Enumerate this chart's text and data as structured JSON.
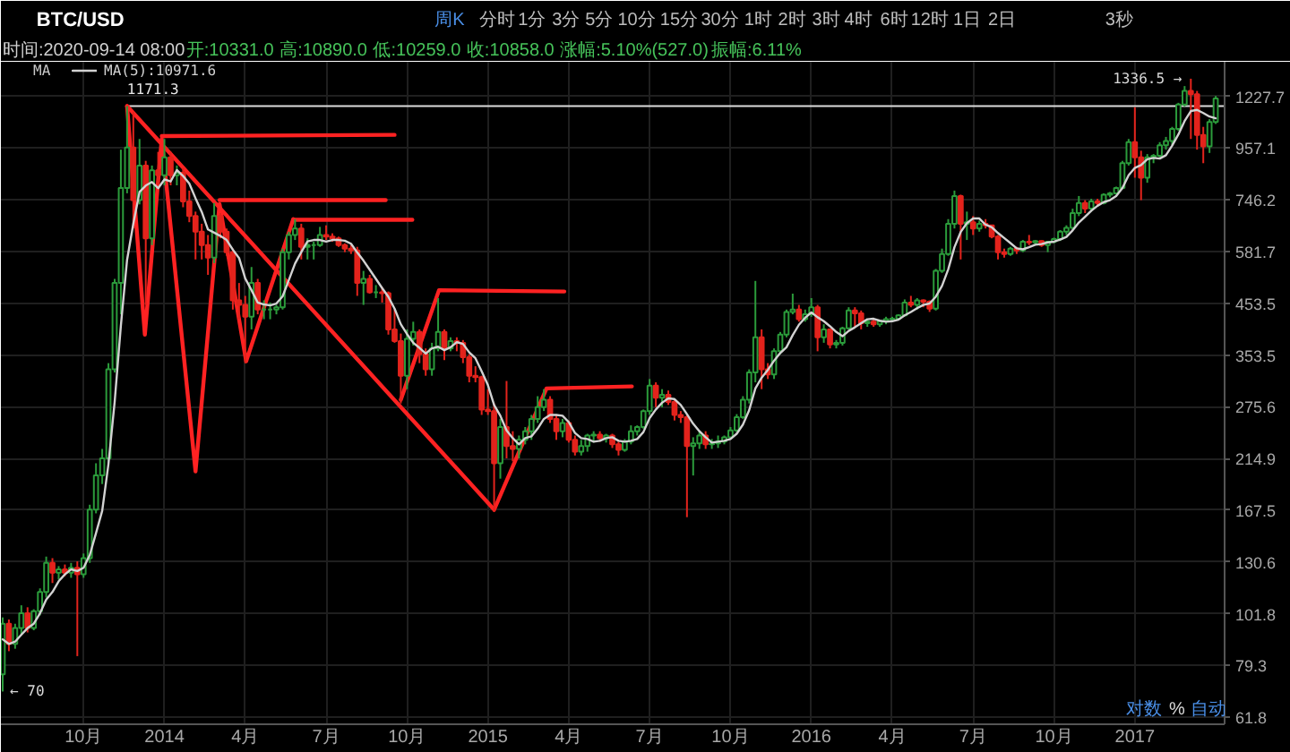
{
  "chart_data": {
    "type": "candlestick",
    "title": "BTC/USD",
    "x": [
      "2013-07-08",
      "2013-07-15",
      "2013-07-22",
      "2013-07-29",
      "2013-08-05",
      "2013-08-12",
      "2013-08-19",
      "2013-08-26",
      "2013-09-02",
      "2013-09-09",
      "2013-09-16",
      "2013-09-23",
      "2013-09-30",
      "2013-10-07",
      "2013-10-14",
      "2013-10-21",
      "2013-10-28",
      "2013-11-04",
      "2013-11-11",
      "2013-11-18",
      "2013-11-25",
      "2013-12-02",
      "2013-12-09",
      "2013-12-16",
      "2013-12-23",
      "2013-12-30",
      "2014-01-06",
      "2014-01-13",
      "2014-01-20",
      "2014-01-27",
      "2014-02-03",
      "2014-02-10",
      "2014-02-17",
      "2014-02-24",
      "2014-03-03",
      "2014-03-10",
      "2014-03-17",
      "2014-03-24",
      "2014-03-31",
      "2014-04-07",
      "2014-04-14",
      "2014-04-21",
      "2014-04-28",
      "2014-05-05",
      "2014-05-12",
      "2014-05-19",
      "2014-05-26",
      "2014-06-02",
      "2014-06-09",
      "2014-06-16",
      "2014-06-23",
      "2014-06-30",
      "2014-07-07",
      "2014-07-14",
      "2014-07-21",
      "2014-07-28",
      "2014-08-04",
      "2014-08-11",
      "2014-08-18",
      "2014-08-25",
      "2014-09-01",
      "2014-09-08",
      "2014-09-15",
      "2014-09-22",
      "2014-09-29",
      "2014-10-06",
      "2014-10-13",
      "2014-10-20",
      "2014-10-27",
      "2014-11-03",
      "2014-11-10",
      "2014-11-17",
      "2014-11-24",
      "2014-12-01",
      "2014-12-08",
      "2014-12-15",
      "2014-12-22",
      "2014-12-29",
      "2015-01-05",
      "2015-01-12",
      "2015-01-19",
      "2015-01-26",
      "2015-02-02",
      "2015-02-09",
      "2015-02-16",
      "2015-02-23",
      "2015-03-02",
      "2015-03-09",
      "2015-03-16",
      "2015-03-23",
      "2015-03-30",
      "2015-04-06",
      "2015-04-13",
      "2015-04-20",
      "2015-04-27",
      "2015-05-04",
      "2015-05-11",
      "2015-05-18",
      "2015-05-25",
      "2015-06-01",
      "2015-06-08",
      "2015-06-15",
      "2015-06-22",
      "2015-06-29",
      "2015-07-06",
      "2015-07-13",
      "2015-07-20",
      "2015-07-27",
      "2015-08-03",
      "2015-08-10",
      "2015-08-17",
      "2015-08-24",
      "2015-08-31",
      "2015-09-07",
      "2015-09-14",
      "2015-09-21",
      "2015-09-28",
      "2015-10-05",
      "2015-10-12",
      "2015-10-19",
      "2015-10-26",
      "2015-11-02",
      "2015-11-09",
      "2015-11-16",
      "2015-11-23",
      "2015-11-30",
      "2015-12-07",
      "2015-12-14",
      "2015-12-21",
      "2015-12-28",
      "2016-01-04",
      "2016-01-11",
      "2016-01-18",
      "2016-01-25",
      "2016-02-01",
      "2016-02-08",
      "2016-02-15",
      "2016-02-22",
      "2016-02-29",
      "2016-03-07",
      "2016-03-14",
      "2016-03-21",
      "2016-03-28",
      "2016-04-04",
      "2016-04-11",
      "2016-04-18",
      "2016-04-25",
      "2016-05-02",
      "2016-05-09",
      "2016-05-16",
      "2016-05-23",
      "2016-05-30",
      "2016-06-06",
      "2016-06-13",
      "2016-06-20",
      "2016-06-27",
      "2016-07-04",
      "2016-07-11",
      "2016-07-18",
      "2016-07-25",
      "2016-08-01",
      "2016-08-08",
      "2016-08-15",
      "2016-08-22",
      "2016-08-29",
      "2016-09-05",
      "2016-09-12",
      "2016-09-19",
      "2016-09-26",
      "2016-10-03",
      "2016-10-10",
      "2016-10-17",
      "2016-10-24",
      "2016-10-31",
      "2016-11-07",
      "2016-11-14",
      "2016-11-21",
      "2016-11-28",
      "2016-12-05",
      "2016-12-12",
      "2016-12-19",
      "2016-12-26",
      "2017-01-02",
      "2017-01-09",
      "2017-01-16",
      "2017-01-23",
      "2017-01-30",
      "2017-02-06",
      "2017-02-13",
      "2017-02-20",
      "2017-02-27",
      "2017-03-06",
      "2017-03-13",
      "2017-03-20",
      "2017-03-27",
      "2017-04-03"
    ],
    "ohlc": [
      [
        76,
        100,
        70,
        97
      ],
      [
        97,
        99,
        85,
        88
      ],
      [
        88,
        97,
        86,
        95
      ],
      [
        95,
        106,
        92,
        102
      ],
      [
        102,
        105,
        93,
        95
      ],
      [
        95,
        104,
        94,
        103
      ],
      [
        103,
        115,
        101,
        113
      ],
      [
        113,
        134,
        110,
        130
      ],
      [
        130,
        133,
        118,
        124
      ],
      [
        124,
        128,
        120,
        126
      ],
      [
        126,
        129,
        122,
        124
      ],
      [
        124,
        130,
        121,
        127
      ],
      [
        127,
        131,
        83,
        123
      ],
      [
        123,
        136,
        121,
        133
      ],
      [
        133,
        172,
        130,
        168
      ],
      [
        168,
        210,
        165,
        198
      ],
      [
        198,
        225,
        190,
        215
      ],
      [
        215,
        340,
        210,
        330
      ],
      [
        330,
        510,
        325,
        500
      ],
      [
        500,
        950,
        430,
        790
      ],
      [
        790,
        1171.3,
        770,
        960
      ],
      [
        960,
        1140,
        650,
        745
      ],
      [
        745,
        1000,
        730,
        880
      ],
      [
        880,
        900,
        450,
        620
      ],
      [
        620,
        880,
        600,
        860
      ],
      [
        860,
        940,
        800,
        840
      ],
      [
        840,
        1000,
        800,
        915
      ],
      [
        915,
        940,
        800,
        840
      ],
      [
        840,
        880,
        800,
        850
      ],
      [
        850,
        870,
        720,
        740
      ],
      [
        740,
        780,
        670,
        690
      ],
      [
        690,
        705,
        560,
        640
      ],
      [
        640,
        665,
        560,
        600
      ],
      [
        600,
        630,
        520,
        565
      ],
      [
        565,
        735,
        550,
        690
      ],
      [
        690,
        700,
        620,
        640
      ],
      [
        640,
        650,
        570,
        580
      ],
      [
        580,
        590,
        440,
        460
      ],
      [
        460,
        500,
        420,
        450
      ],
      [
        450,
        470,
        340,
        425
      ],
      [
        425,
        540,
        400,
        500
      ],
      [
        500,
        510,
        430,
        440
      ],
      [
        440,
        460,
        420,
        440
      ],
      [
        440,
        455,
        420,
        440
      ],
      [
        440,
        450,
        430,
        445
      ],
      [
        445,
        590,
        440,
        580
      ],
      [
        580,
        640,
        560,
        630
      ],
      [
        630,
        680,
        615,
        650
      ],
      [
        650,
        665,
        560,
        595
      ],
      [
        595,
        620,
        560,
        600
      ],
      [
        600,
        610,
        560,
        600
      ],
      [
        600,
        655,
        595,
        630
      ],
      [
        630,
        660,
        615,
        625
      ],
      [
        625,
        635,
        610,
        620
      ],
      [
        620,
        625,
        595,
        600
      ],
      [
        600,
        605,
        580,
        590
      ],
      [
        590,
        600,
        575,
        585
      ],
      [
        585,
        595,
        470,
        500
      ],
      [
        500,
        530,
        450,
        510
      ],
      [
        510,
        520,
        475,
        478
      ],
      [
        478,
        495,
        465,
        478
      ],
      [
        478,
        490,
        455,
        476
      ],
      [
        476,
        480,
        390,
        400
      ],
      [
        400,
        440,
        375,
        378
      ],
      [
        378,
        392,
        280,
        320
      ],
      [
        320,
        400,
        300,
        382
      ],
      [
        382,
        415,
        370,
        395
      ],
      [
        395,
        400,
        340,
        355
      ],
      [
        355,
        365,
        320,
        330
      ],
      [
        330,
        375,
        320,
        365
      ],
      [
        365,
        465,
        360,
        395
      ],
      [
        395,
        400,
        345,
        365
      ],
      [
        365,
        385,
        360,
        378
      ],
      [
        378,
        385,
        360,
        375
      ],
      [
        375,
        380,
        340,
        350
      ],
      [
        350,
        355,
        310,
        320
      ],
      [
        320,
        335,
        310,
        318
      ],
      [
        318,
        320,
        265,
        272
      ],
      [
        272,
        300,
        265,
        270
      ],
      [
        270,
        280,
        166,
        210
      ],
      [
        210,
        260,
        195,
        250
      ],
      [
        250,
        312,
        215,
        228
      ],
      [
        228,
        245,
        212,
        225
      ],
      [
        225,
        240,
        215,
        235
      ],
      [
        235,
        250,
        230,
        245
      ],
      [
        245,
        265,
        235,
        260
      ],
      [
        260,
        290,
        255,
        275
      ],
      [
        275,
        300,
        270,
        285
      ],
      [
        285,
        290,
        255,
        260
      ],
      [
        260,
        265,
        235,
        245
      ],
      [
        245,
        260,
        238,
        255
      ],
      [
        255,
        258,
        232,
        235
      ],
      [
        235,
        240,
        218,
        222
      ],
      [
        222,
        235,
        218,
        228
      ],
      [
        228,
        242,
        222,
        240
      ],
      [
        240,
        245,
        232,
        241
      ],
      [
        241,
        245,
        233,
        237
      ],
      [
        237,
        242,
        232,
        240
      ],
      [
        240,
        242,
        226,
        230
      ],
      [
        230,
        233,
        218,
        224
      ],
      [
        224,
        236,
        222,
        233
      ],
      [
        233,
        252,
        230,
        245
      ],
      [
        245,
        252,
        240,
        250
      ],
      [
        250,
        272,
        248,
        270
      ],
      [
        270,
        315,
        265,
        305
      ],
      [
        305,
        310,
        275,
        288
      ],
      [
        288,
        300,
        275,
        292
      ],
      [
        292,
        298,
        278,
        282
      ],
      [
        282,
        285,
        258,
        265
      ],
      [
        265,
        270,
        255,
        262
      ],
      [
        262,
        265,
        162,
        228
      ],
      [
        228,
        238,
        198,
        231
      ],
      [
        231,
        245,
        225,
        240
      ],
      [
        240,
        245,
        225,
        230
      ],
      [
        230,
        236,
        225,
        231
      ],
      [
        231,
        240,
        226,
        233
      ],
      [
        233,
        240,
        230,
        238
      ],
      [
        238,
        250,
        236,
        246
      ],
      [
        246,
        266,
        244,
        262
      ],
      [
        262,
        290,
        260,
        285
      ],
      [
        285,
        330,
        280,
        325
      ],
      [
        325,
        505,
        310,
        385
      ],
      [
        385,
        400,
        300,
        330
      ],
      [
        330,
        340,
        315,
        322
      ],
      [
        322,
        365,
        315,
        360
      ],
      [
        360,
        395,
        355,
        390
      ],
      [
        390,
        440,
        385,
        435
      ],
      [
        435,
        475,
        430,
        440
      ],
      [
        440,
        450,
        415,
        420
      ],
      [
        420,
        440,
        415,
        430
      ],
      [
        430,
        465,
        425,
        445
      ],
      [
        445,
        450,
        360,
        385
      ],
      [
        385,
        410,
        375,
        400
      ],
      [
        400,
        402,
        365,
        372
      ],
      [
        372,
        380,
        365,
        375
      ],
      [
        375,
        405,
        370,
        402
      ],
      [
        402,
        445,
        400,
        438
      ],
      [
        438,
        445,
        405,
        432
      ],
      [
        432,
        438,
        400,
        412
      ],
      [
        412,
        420,
        405,
        415
      ],
      [
        415,
        420,
        405,
        410
      ],
      [
        410,
        418,
        405,
        416
      ],
      [
        416,
        425,
        410,
        420
      ],
      [
        420,
        425,
        415,
        421
      ],
      [
        421,
        430,
        418,
        428
      ],
      [
        428,
        462,
        426,
        455
      ],
      [
        455,
        470,
        445,
        450
      ],
      [
        450,
        465,
        440,
        460
      ],
      [
        460,
        462,
        445,
        457
      ],
      [
        457,
        460,
        435,
        442
      ],
      [
        442,
        535,
        438,
        530
      ],
      [
        530,
        590,
        525,
        575
      ],
      [
        575,
        680,
        570,
        665
      ],
      [
        665,
        780,
        650,
        760
      ],
      [
        760,
        765,
        560,
        665
      ],
      [
        665,
        705,
        615,
        670
      ],
      [
        670,
        690,
        630,
        650
      ],
      [
        650,
        675,
        640,
        665
      ],
      [
        665,
        680,
        650,
        660
      ],
      [
        660,
        662,
        620,
        625
      ],
      [
        625,
        630,
        560,
        580
      ],
      [
        580,
        590,
        565,
        575
      ],
      [
        575,
        595,
        570,
        590
      ],
      [
        590,
        595,
        575,
        585
      ],
      [
        585,
        615,
        580,
        610
      ],
      [
        610,
        630,
        600,
        608
      ],
      [
        608,
        615,
        600,
        612
      ],
      [
        612,
        614,
        595,
        600
      ],
      [
        600,
        612,
        580,
        610
      ],
      [
        610,
        622,
        605,
        618
      ],
      [
        618,
        645,
        612,
        640
      ],
      [
        640,
        660,
        630,
        652
      ],
      [
        652,
        715,
        645,
        700
      ],
      [
        700,
        760,
        690,
        735
      ],
      [
        735,
        745,
        700,
        715
      ],
      [
        715,
        750,
        705,
        740
      ],
      [
        740,
        750,
        725,
        735
      ],
      [
        735,
        770,
        730,
        765
      ],
      [
        765,
        775,
        755,
        770
      ],
      [
        770,
        795,
        765,
        790
      ],
      [
        790,
        900,
        785,
        890
      ],
      [
        890,
        1000,
        880,
        985
      ],
      [
        985,
        1165,
        830,
        915
      ],
      [
        915,
        945,
        745,
        830
      ],
      [
        830,
        930,
        810,
        915
      ],
      [
        915,
        930,
        890,
        922
      ],
      [
        922,
        985,
        915,
        970
      ],
      [
        970,
        1010,
        950,
        990
      ],
      [
        990,
        1060,
        970,
        1050
      ],
      [
        1050,
        1190,
        1040,
        1180
      ],
      [
        1180,
        1290,
        1170,
        1260
      ],
      [
        1260,
        1336.5,
        1000,
        1240
      ],
      [
        1240,
        1260,
        950,
        1020
      ],
      [
        1020,
        1060,
        890,
        965
      ],
      [
        965,
        1100,
        935,
        1085
      ],
      [
        1085,
        1230,
        1075,
        1215
      ]
    ],
    "colors": [
      "#2b9b3b",
      "#e3231c",
      "#2b9b3b",
      "#2b9b3b",
      "#e3231c",
      "#2b9b3b",
      "#2b9b3b",
      "#2b9b3b",
      "#e3231c",
      "#2b9b3b",
      "#e3231c",
      "#2b9b3b",
      "#e3231c",
      "#2b9b3b",
      "#2b9b3b",
      "#2b9b3b",
      "#2b9b3b",
      "#2b9b3b",
      "#2b9b3b",
      "#2b9b3b",
      "#2b9b3b",
      "#e3231c",
      "#2b9b3b",
      "#e3231c",
      "#2b9b3b",
      "#e3231c",
      "#2b9b3b",
      "#e3231c",
      "#2b9b3b",
      "#e3231c",
      "#e3231c",
      "#e3231c",
      "#e3231c",
      "#e3231c",
      "#2b9b3b",
      "#e3231c",
      "#e3231c",
      "#e3231c",
      "#e3231c",
      "#e3231c",
      "#2b9b3b",
      "#e3231c",
      "#2b9b3b",
      "#2b9b3b",
      "#2b9b3b",
      "#2b9b3b",
      "#2b9b3b",
      "#2b9b3b",
      "#e3231c",
      "#2b9b3b",
      "#2b9b3b",
      "#2b9b3b",
      "#e3231c",
      "#e3231c",
      "#e3231c",
      "#e3231c",
      "#e3231c",
      "#e3231c",
      "#2b9b3b",
      "#e3231c",
      "#2b9b3b",
      "#e3231c",
      "#e3231c",
      "#e3231c",
      "#e3231c",
      "#2b9b3b",
      "#2b9b3b",
      "#e3231c",
      "#e3231c",
      "#2b9b3b",
      "#2b9b3b",
      "#e3231c",
      "#2b9b3b",
      "#e3231c",
      "#e3231c",
      "#e3231c",
      "#e3231c",
      "#e3231c",
      "#e3231c",
      "#e3231c",
      "#2b9b3b",
      "#e3231c",
      "#e3231c",
      "#2b9b3b",
      "#2b9b3b",
      "#2b9b3b",
      "#2b9b3b",
      "#2b9b3b",
      "#e3231c",
      "#e3231c",
      "#2b9b3b",
      "#e3231c",
      "#e3231c",
      "#2b9b3b",
      "#2b9b3b",
      "#2b9b3b",
      "#e3231c",
      "#2b9b3b",
      "#e3231c",
      "#e3231c",
      "#2b9b3b",
      "#2b9b3b",
      "#2b9b3b",
      "#2b9b3b",
      "#2b9b3b",
      "#e3231c",
      "#2b9b3b",
      "#e3231c",
      "#e3231c",
      "#e3231c",
      "#e3231c",
      "#2b9b3b",
      "#2b9b3b",
      "#e3231c",
      "#2b9b3b",
      "#2b9b3b",
      "#2b9b3b",
      "#2b9b3b",
      "#2b9b3b",
      "#2b9b3b",
      "#2b9b3b",
      "#2b9b3b",
      "#e3231c",
      "#e3231c",
      "#2b9b3b",
      "#2b9b3b",
      "#2b9b3b",
      "#2b9b3b",
      "#e3231c",
      "#2b9b3b",
      "#2b9b3b",
      "#e3231c",
      "#2b9b3b",
      "#e3231c",
      "#2b9b3b",
      "#2b9b3b",
      "#2b9b3b",
      "#e3231c",
      "#e3231c",
      "#2b9b3b",
      "#e3231c",
      "#2b9b3b",
      "#2b9b3b",
      "#2b9b3b",
      "#2b9b3b",
      "#2b9b3b",
      "#e3231c",
      "#2b9b3b",
      "#e3231c",
      "#e3231c",
      "#2b9b3b",
      "#2b9b3b",
      "#2b9b3b",
      "#2b9b3b",
      "#e3231c",
      "#2b9b3b",
      "#e3231c",
      "#2b9b3b",
      "#e3231c",
      "#e3231c",
      "#e3231c",
      "#e3231c",
      "#2b9b3b",
      "#e3231c",
      "#2b9b3b",
      "#e3231c",
      "#2b9b3b",
      "#e3231c",
      "#2b9b3b",
      "#2b9b3b",
      "#2b9b3b",
      "#2b9b3b",
      "#2b9b3b",
      "#2b9b3b",
      "#e3231c",
      "#2b9b3b",
      "#e3231c",
      "#2b9b3b",
      "#2b9b3b",
      "#2b9b3b",
      "#2b9b3b",
      "#2b9b3b",
      "#e3231c",
      "#e3231c",
      "#2b9b3b",
      "#2b9b3b",
      "#2b9b3b",
      "#2b9b3b",
      "#2b9b3b",
      "#2b9b3b",
      "#2b9b3b",
      "#e3231c",
      "#e3231c",
      "#e3231c",
      "#2b9b3b",
      "#2b9b3b"
    ],
    "series": [
      {
        "type": "line",
        "name": "MA(5):10971.6",
        "color": "#d2d2d2",
        "values": [
          90,
          88,
          89,
          92,
          95,
          97,
          102,
          109,
          113,
          119,
          123,
          126,
          125,
          127,
          135,
          150,
          167,
          209,
          282,
          407,
          559,
          665,
          775,
          799,
          813,
          789,
          823,
          815,
          861,
          837,
          807,
          752,
          704,
          647,
          637,
          627,
          615,
          587,
          564,
          511,
          483,
          455,
          451,
          449,
          453,
          469,
          507,
          549,
          580,
          611,
          615,
          615,
          610,
          615,
          615,
          613,
          604,
          579,
          557,
          533,
          510,
          488,
          468,
          442,
          410,
          391,
          375,
          366,
          356,
          365,
          368,
          362,
          367,
          376,
          373,
          358,
          348,
          327,
          306,
          278,
          264,
          246,
          237,
          230,
          237,
          239,
          248,
          260,
          265,
          265,
          264,
          256,
          243,
          237,
          236,
          233,
          234,
          237,
          238,
          234,
          233,
          234,
          236,
          244,
          261,
          272,
          281,
          287,
          286,
          278,
          266,
          254,
          245,
          238,
          232,
          233,
          234,
          236,
          242,
          253,
          271,
          301,
          317,
          329,
          344,
          357,
          367,
          389,
          409,
          423,
          434,
          424,
          416,
          406,
          395,
          387,
          397,
          404,
          412,
          420,
          421,
          417,
          415,
          416,
          419,
          428,
          435,
          443,
          450,
          453,
          468,
          493,
          534,
          594,
          639,
          667,
          682,
          682,
          662,
          654,
          636,
          621,
          606,
          591,
          588,
          594,
          601,
          603,
          608,
          610,
          616,
          624,
          644,
          669,
          688,
          708,
          725,
          738,
          745,
          760,
          790,
          840,
          870,
          882,
          907,
          913,
          910,
          925,
          969,
          1022,
          1090,
          1144,
          1150,
          1133,
          1114,
          1105
        ]
      },
      {
        "type": "line",
        "color": "#ff2222",
        "x": [
          "2013-11-25",
          "2013-12-15",
          "2014-01-03",
          "2014-02-10",
          "2014-03-09",
          "2014-04-08",
          "2014-05-31"
        ],
        "values": [
          1171.3,
          390,
          1000,
          202,
          731,
          343,
          680
        ]
      },
      {
        "type": "line",
        "color": "#ff2222",
        "x": [
          "2014-01-03",
          "2014-09-22"
        ],
        "values": [
          1014,
          1020
        ]
      },
      {
        "type": "line",
        "color": "#ff2222",
        "x": [
          "2014-03-09",
          "2014-09-12"
        ],
        "values": [
          745,
          745
        ]
      },
      {
        "type": "line",
        "color": "#ff2222",
        "x": [
          "2014-05-31",
          "2014-10-12"
        ],
        "values": [
          678,
          678
        ]
      },
      {
        "type": "line",
        "color": "#ff2222",
        "x": [
          "2014-09-29",
          "2014-11-11",
          "2015-04-01"
        ],
        "values": [
          285,
          483,
          480
        ]
      },
      {
        "type": "line",
        "color": "#ff2222",
        "x": [
          "2013-11-25",
          "2015-01-12",
          "2015-03-12",
          "2015-06-16"
        ],
        "values": [
          1171.3,
          168,
          301,
          304
        ]
      }
    ],
    "xlim": [
      "2013-07-06",
      "2017-04-13"
    ],
    "xticks": [
      {
        "value": "2013-10-07",
        "label": "10月"
      },
      {
        "value": "2014-01-06",
        "label": "2014"
      },
      {
        "value": "2014-04-07",
        "label": "4月"
      },
      {
        "value": "2014-07-07",
        "label": "7月"
      },
      {
        "value": "2014-10-06",
        "label": "10月"
      },
      {
        "value": "2015-01-05",
        "label": "2015"
      },
      {
        "value": "2015-04-06",
        "label": "4月"
      },
      {
        "value": "2015-07-06",
        "label": "7月"
      },
      {
        "value": "2015-10-05",
        "label": "10月"
      },
      {
        "value": "2016-01-04",
        "label": "2016"
      },
      {
        "value": "2016-04-04",
        "label": "4月"
      },
      {
        "value": "2016-07-04",
        "label": "7月"
      },
      {
        "value": "2016-10-03",
        "label": "10月"
      },
      {
        "value": "2017-01-02",
        "label": "2017"
      }
    ],
    "ylim": [
      59.8,
      1450
    ],
    "yticks": [
      61.8,
      79.3,
      101.8,
      130.6,
      167.5,
      214.9,
      275.6,
      353.5,
      453.5,
      581.7,
      746.2,
      957.1,
      1227.7
    ],
    "log": true,
    "grid": true,
    "legend": "top left",
    "ref_lines": [
      {
        "axis": "y",
        "value": 1171.3,
        "label": "1171.3",
        "color": "#dcdcdc"
      }
    ],
    "annotations": [
      "周K",
      "分时",
      "1分",
      "3分",
      "5分",
      "10分",
      "15分",
      "30分",
      "1时",
      "2时",
      "3时",
      "4时",
      "6时",
      "12时",
      "1日",
      "2日",
      "3秒",
      "时间:2020-09-14 08:00",
      "开:10331.0",
      "高:10890.0",
      "低:10259.0",
      "收:10858.0",
      "涨幅:5.10%(527.0)",
      "振幅:6.11%",
      "MA",
      "对数",
      "%",
      "自动",
      {
        "text": "1336.5 →",
        "x": "2017-03-06",
        "y": 1336.5
      },
      {
        "text": "← 70",
        "x": "2013-07-08",
        "y": 70
      }
    ]
  }
}
